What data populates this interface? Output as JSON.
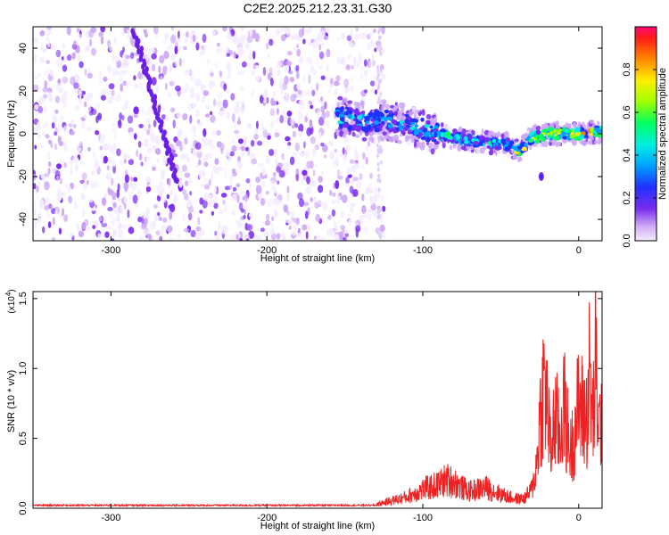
{
  "title": "C2E2.2025.212.23.31.G30",
  "chart_data": [
    {
      "type": "heatmap",
      "title": "C2E2.2025.212.23.31.G30",
      "xlabel": "Height of straight line (km)",
      "ylabel": "Frequency (Hz)",
      "xlim": [
        -350,
        15
      ],
      "ylim": [
        -50,
        50
      ],
      "x_ticks": [
        -300,
        -200,
        -100,
        0
      ],
      "y_ticks": [
        -40,
        -20,
        0,
        20,
        40
      ],
      "colorbar": {
        "label": "Normalized spectral amplitude",
        "range": [
          0,
          1
        ],
        "ticks": [
          "0.0",
          "0.2",
          "0.4",
          "0.6",
          "0.8"
        ]
      },
      "features": {
        "noise_region_x": [
          -350,
          -125
        ],
        "diagonal_track": {
          "x": [
            -285,
            -258
          ],
          "y": [
            48,
            -22
          ]
        },
        "signal_ridge": {
          "x": [
            -155,
            -140,
            -120,
            -100,
            -80,
            -60,
            -45,
            -38,
            -30,
            -20,
            -10,
            0,
            10,
            15
          ],
          "y": [
            8,
            6,
            6,
            2,
            -2,
            -4,
            -5,
            -8,
            -2,
            0,
            0,
            0,
            1,
            1
          ]
        },
        "outlier_spot": {
          "x": -24,
          "y": -20
        }
      },
      "grid": false
    },
    {
      "type": "line",
      "xlabel": "Height of straight line (km)",
      "ylabel": "SNR (10 * v/v)",
      "y_multiplier": "x10^4",
      "xlim": [
        -350,
        15
      ],
      "ylim": [
        0,
        1.55
      ],
      "x_ticks": [
        -300,
        -200,
        -100,
        0
      ],
      "y_ticks": [
        "0.0",
        "0.5",
        "1.0",
        "1.5"
      ],
      "series": [
        {
          "color": "#ee2222",
          "x": [
            -350,
            -300,
            -250,
            -200,
            -150,
            -130,
            -120,
            -110,
            -100,
            -90,
            -85,
            -80,
            -75,
            -70,
            -60,
            -50,
            -45,
            -40,
            -35,
            -30,
            -27,
            -25,
            -22,
            -20,
            -18,
            -15,
            -12,
            -10,
            -7,
            -5,
            -2,
            0,
            3,
            5,
            7,
            9,
            11,
            13,
            15
          ],
          "values": [
            0.02,
            0.02,
            0.02,
            0.02,
            0.02,
            0.04,
            0.08,
            0.12,
            0.2,
            0.25,
            0.3,
            0.28,
            0.22,
            0.18,
            0.22,
            0.15,
            0.12,
            0.1,
            0.1,
            0.2,
            0.45,
            0.95,
            1.35,
            1.05,
            0.6,
            1.0,
            0.7,
            1.15,
            0.8,
            0.6,
            0.9,
            1.1,
            1.0,
            0.95,
            1.45,
            0.9,
            1.55,
            0.8,
            1.05
          ]
        }
      ],
      "grid": false
    }
  ]
}
